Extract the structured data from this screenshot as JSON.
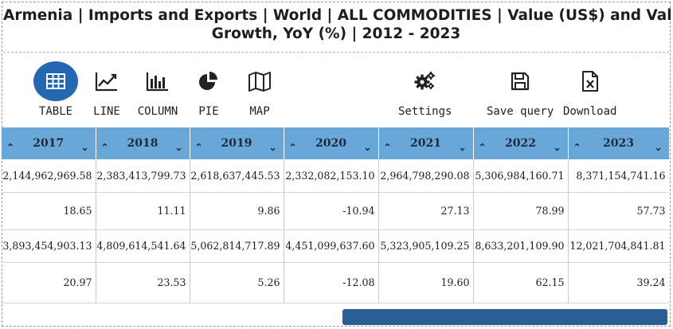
{
  "title": {
    "line1": "Armenia | Imports and Exports | World | ALL COMMODITIES | Value (US$) and Value",
    "line2": "Growth, YoY (%) | 2012 - 2023"
  },
  "toolbar": {
    "table": "TABLE",
    "line": "LINE",
    "column": "COLUMN",
    "pie": "PIE",
    "map": "MAP",
    "settings": "Settings",
    "save_query": "Save query",
    "download": "Download",
    "active_color": "#2467b3"
  },
  "table": {
    "header_color": "#6aa7d9",
    "columns": [
      "2017",
      "2018",
      "2019",
      "2020",
      "2021",
      "2022",
      "2023"
    ],
    "rows": [
      [
        "2,144,962,969.58",
        "2,383,413,799.73",
        "2,618,637,445.53",
        "2,332,082,153.10",
        "2,964,798,290.08",
        "5,306,984,160.71",
        "8,371,154,741.16"
      ],
      [
        "18.65",
        "11.11",
        "9.86",
        "-10.94",
        "27.13",
        "78.99",
        "57.73"
      ],
      [
        "3,893,454,903.13",
        "4,809,614,541.64",
        "5,062,814,717.89",
        "4,451,099,637.60",
        "5,323,905,109.25",
        "8,633,201,109.90",
        "12,021,704,841.81"
      ],
      [
        "20.97",
        "23.53",
        "5.26",
        "-12.08",
        "19.60",
        "62.15",
        "39.24"
      ]
    ]
  }
}
